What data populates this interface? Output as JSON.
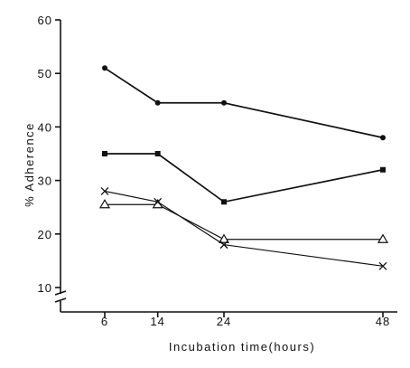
{
  "chart_data": {
    "type": "line",
    "title": "",
    "xlabel": "Incubation time(hours)",
    "ylabel": "% Adherence",
    "x": [
      6,
      14,
      24,
      48
    ],
    "x_ticks": [
      "6",
      "14",
      "24",
      "48"
    ],
    "y_ticks": [
      "10",
      "20",
      "30",
      "40",
      "50",
      "60"
    ],
    "ylim": [
      10,
      60
    ],
    "axis_break": "y",
    "grid": false,
    "legend": "none",
    "series": [
      {
        "marker": "filled-circle",
        "values": [
          51,
          44.5,
          44.5,
          38
        ]
      },
      {
        "marker": "filled-square",
        "values": [
          35,
          35,
          26,
          32
        ]
      },
      {
        "marker": "open-triangle",
        "values": [
          25.5,
          25.5,
          19,
          19
        ]
      },
      {
        "marker": "x-cross",
        "values": [
          28,
          26,
          18,
          14
        ]
      }
    ],
    "colors": {
      "ink": "#111111",
      "background": "#ffffff"
    }
  }
}
